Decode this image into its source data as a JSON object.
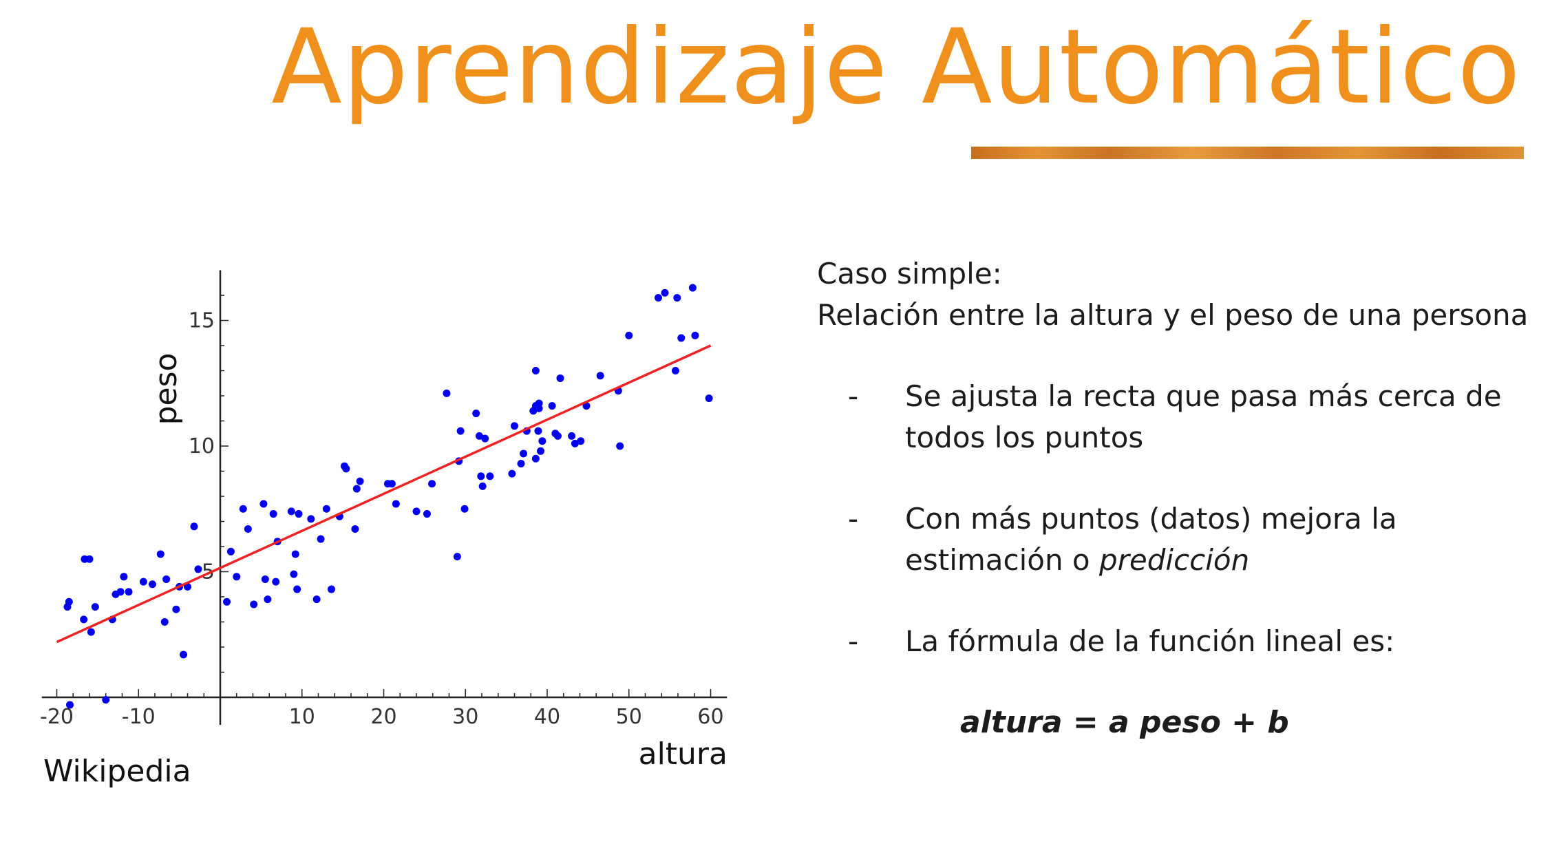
{
  "slide": {
    "title": "Aprendizaje Automático",
    "accent_color": "#f0901c",
    "source": "Wikipedia"
  },
  "text": {
    "intro_line1": "Caso simple:",
    "intro_line2": "Relación entre la altura y el peso de una persona",
    "bullets": [
      {
        "dash": "-",
        "text": "Se ajusta la recta que pasa más cerca de todos los puntos"
      },
      {
        "dash": "-",
        "text_before": "Con más puntos (datos) mejora la estimación o ",
        "emphasis": "predicción"
      },
      {
        "dash": "-",
        "text": "La fórmula de la función lineal es:"
      }
    ],
    "formula": "altura = a peso + b"
  },
  "chart_data": {
    "type": "scatter",
    "title": "",
    "xlabel": "altura",
    "ylabel": "peso",
    "xlim": [
      -22,
      62
    ],
    "ylim": [
      0,
      17
    ],
    "x_ticks": [
      -20,
      -10,
      10,
      20,
      30,
      40,
      50,
      60
    ],
    "y_ticks": [
      5,
      10,
      15
    ],
    "grid": false,
    "point_color": "#0000ee",
    "line_color": "#ee2222",
    "fit_line": {
      "x": [
        -20,
        60
      ],
      "y": [
        2.2,
        14.0
      ]
    },
    "points": [
      [
        -18.7,
        3.6
      ],
      [
        -18.5,
        3.8
      ],
      [
        -16.6,
        5.5
      ],
      [
        -16,
        5.5
      ],
      [
        -16.7,
        3.1
      ],
      [
        -15.8,
        2.6
      ],
      [
        -15.3,
        3.6
      ],
      [
        -13.2,
        3.1
      ],
      [
        -12.8,
        4.1
      ],
      [
        -12.2,
        4.2
      ],
      [
        -11.8,
        4.8
      ],
      [
        -11.2,
        4.2
      ],
      [
        -9.4,
        4.6
      ],
      [
        -8.3,
        4.5
      ],
      [
        -7.3,
        5.7
      ],
      [
        -6.8,
        3
      ],
      [
        -6.6,
        4.7
      ],
      [
        -5.4,
        3.5
      ],
      [
        -5,
        4.4
      ],
      [
        -4.5,
        1.7
      ],
      [
        -4,
        4.4
      ],
      [
        -3.2,
        6.8
      ],
      [
        -2.7,
        5.1
      ],
      [
        0.8,
        3.8
      ],
      [
        1.3,
        5.8
      ],
      [
        2,
        4.8
      ],
      [
        2.8,
        7.5
      ],
      [
        3.4,
        6.7
      ],
      [
        4.1,
        3.7
      ],
      [
        5.3,
        7.7
      ],
      [
        5.5,
        4.7
      ],
      [
        5.8,
        3.9
      ],
      [
        6.5,
        7.3
      ],
      [
        6.8,
        4.6
      ],
      [
        7,
        6.2
      ],
      [
        8.7,
        7.4
      ],
      [
        9,
        4.9
      ],
      [
        9.2,
        5.7
      ],
      [
        9.4,
        4.3
      ],
      [
        9.6,
        7.3
      ],
      [
        11.1,
        7.1
      ],
      [
        11.8,
        3.9
      ],
      [
        12.3,
        6.3
      ],
      [
        13,
        7.5
      ],
      [
        13.6,
        4.3
      ],
      [
        14.6,
        7.2
      ],
      [
        15.2,
        9.2
      ],
      [
        15.4,
        9.1
      ],
      [
        16.5,
        6.7
      ],
      [
        16.7,
        8.3
      ],
      [
        17.1,
        8.6
      ],
      [
        20.5,
        8.5
      ],
      [
        21,
        8.5
      ],
      [
        21.5,
        7.7
      ],
      [
        24,
        7.4
      ],
      [
        25.3,
        7.3
      ],
      [
        25.9,
        8.5
      ],
      [
        27.7,
        12.1
      ],
      [
        29,
        5.6
      ],
      [
        29.2,
        9.4
      ],
      [
        29.4,
        10.6
      ],
      [
        29.9,
        7.5
      ],
      [
        31.3,
        11.3
      ],
      [
        31.7,
        10.4
      ],
      [
        31.9,
        8.8
      ],
      [
        32.1,
        8.4
      ],
      [
        32.4,
        10.3
      ],
      [
        33,
        8.8
      ],
      [
        35.7,
        8.9
      ],
      [
        36,
        10.8
      ],
      [
        36.8,
        9.3
      ],
      [
        37.1,
        9.7
      ],
      [
        37.5,
        10.6
      ],
      [
        38.3,
        11.4
      ],
      [
        38.6,
        13
      ],
      [
        38.6,
        9.5
      ],
      [
        38.6,
        11.6
      ],
      [
        38.9,
        10.6
      ],
      [
        39,
        11.5
      ],
      [
        39,
        11.7
      ],
      [
        39.2,
        9.8
      ],
      [
        39.4,
        10.2
      ],
      [
        40.6,
        11.6
      ],
      [
        41,
        10.5
      ],
      [
        41.3,
        10.4
      ],
      [
        41.6,
        12.7
      ],
      [
        43,
        10.4
      ],
      [
        43.4,
        10.1
      ],
      [
        44.1,
        10.2
      ],
      [
        44.8,
        11.6
      ],
      [
        46.5,
        12.8
      ],
      [
        48.7,
        12.2
      ],
      [
        48.9,
        10
      ],
      [
        50,
        14.4
      ],
      [
        53.6,
        15.9
      ],
      [
        54.4,
        16.1
      ],
      [
        55.7,
        13
      ],
      [
        55.9,
        15.9
      ],
      [
        56.4,
        14.3
      ],
      [
        57.8,
        16.3
      ],
      [
        58.1,
        14.4
      ],
      [
        59.8,
        11.9
      ],
      [
        -18.4,
        -0.3
      ],
      [
        -14,
        -0.1
      ]
    ]
  }
}
